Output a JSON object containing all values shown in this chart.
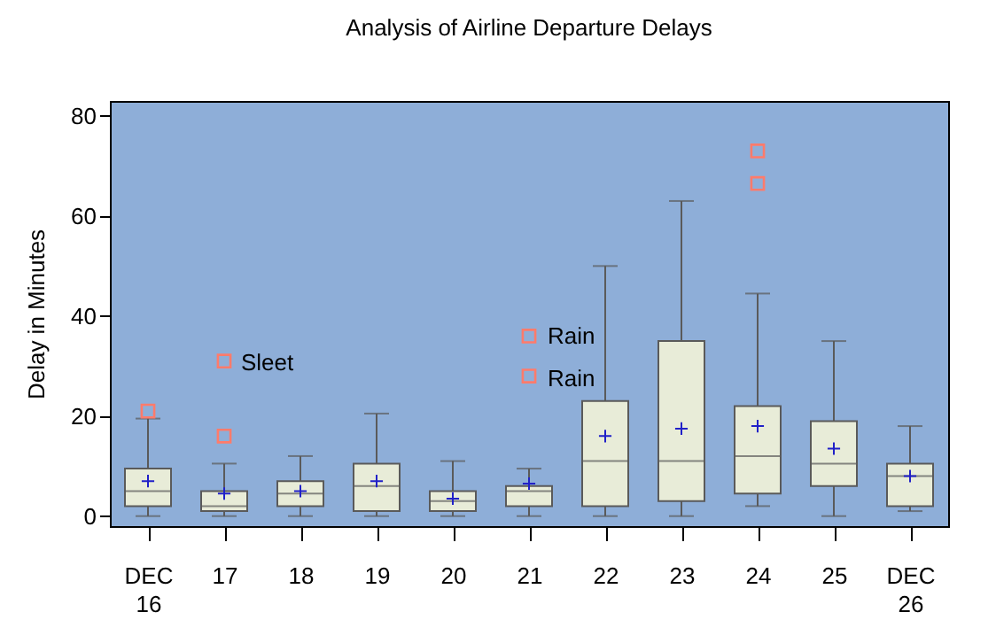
{
  "chart_data": {
    "type": "box",
    "title": "Analysis of Airline Departure Delays",
    "ylabel": "Delay in Minutes",
    "categories": [
      "DEC 16",
      "17",
      "18",
      "19",
      "20",
      "21",
      "22",
      "23",
      "24",
      "25",
      "DEC 26"
    ],
    "boxes": [
      {
        "low": 0,
        "q1": 2,
        "median": 5,
        "q3": 9.5,
        "high": 19.5,
        "mean": 7,
        "outliers": [
          21
        ]
      },
      {
        "low": 0,
        "q1": 1,
        "median": 2,
        "q3": 5,
        "high": 10.5,
        "mean": 4.5,
        "outliers": [
          16,
          31
        ]
      },
      {
        "low": 0,
        "q1": 2,
        "median": 4.5,
        "q3": 7,
        "high": 12,
        "mean": 5
      },
      {
        "low": 0,
        "q1": 1,
        "median": 6,
        "q3": 10.5,
        "high": 20.5,
        "mean": 7
      },
      {
        "low": 0,
        "q1": 1,
        "median": 3,
        "q3": 5,
        "high": 11,
        "mean": 3.5
      },
      {
        "low": 0,
        "q1": 2,
        "median": 5,
        "q3": 6,
        "high": 9.5,
        "mean": 6.5,
        "outliers": [
          28,
          36
        ]
      },
      {
        "low": 0,
        "q1": 2,
        "median": 11,
        "q3": 23,
        "high": 50,
        "mean": 16
      },
      {
        "low": 0,
        "q1": 3,
        "median": 11,
        "q3": 35,
        "high": 63,
        "mean": 17.5
      },
      {
        "low": 2,
        "q1": 4.5,
        "median": 12,
        "q3": 22,
        "high": 44.5,
        "mean": 18,
        "outliers": [
          66.5,
          73
        ]
      },
      {
        "low": 0,
        "q1": 6,
        "median": 10.5,
        "q3": 19,
        "high": 35,
        "mean": 13.5
      },
      {
        "low": 1,
        "q1": 2,
        "median": 8,
        "q3": 10.5,
        "high": 18,
        "mean": 8
      }
    ],
    "ylim": [
      -2,
      83
    ],
    "yticks": [
      0,
      20,
      40,
      60,
      80
    ],
    "annotations": [
      "Sleet",
      "Rain",
      "Rain"
    ]
  }
}
